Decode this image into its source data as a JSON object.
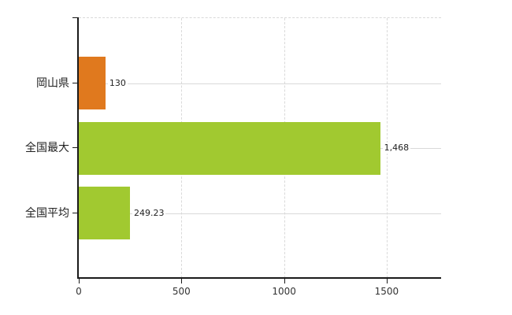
{
  "chart_data": {
    "type": "bar",
    "orientation": "horizontal",
    "title": "",
    "categories": [
      "岡山県",
      "全国最大",
      "全国平均"
    ],
    "values": [
      130,
      1468,
      249.23
    ],
    "value_labels": [
      "130",
      "1,468",
      "249.23"
    ],
    "bar_colors": [
      "#e0791e",
      "#a1c930",
      "#a1c930"
    ],
    "x_ticks": [
      0,
      500,
      1000,
      1500
    ],
    "x_tick_labels": [
      "0",
      "500",
      "1000",
      "1500"
    ],
    "xlim": [
      0,
      1765
    ],
    "grid": true,
    "legend": false
  },
  "colors": {
    "bar_orange": "#e0791e",
    "bar_green": "#a1c930",
    "gridline": "#d9d9d9",
    "axis": "#1a1a1a",
    "text": "#333333"
  }
}
